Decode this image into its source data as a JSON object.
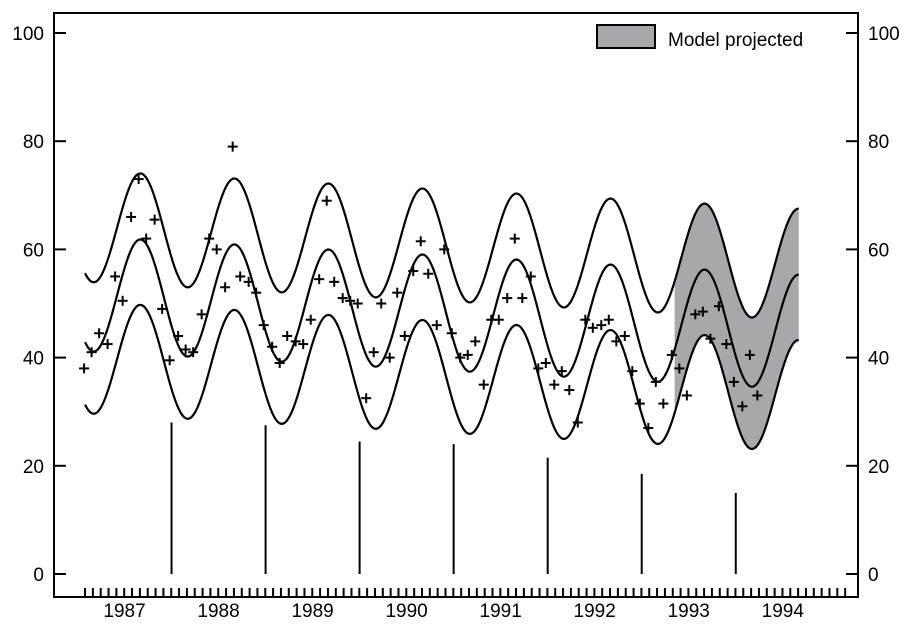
{
  "chart_data": {
    "type": "line",
    "title": "",
    "xlabel": "",
    "ylabel": "",
    "xlim": [
      1986.25,
      1994.8
    ],
    "ylim": [
      0,
      100
    ],
    "yticks": [
      0,
      20,
      40,
      60,
      80,
      100
    ],
    "xticks": [
      {
        "label": "1987",
        "value": 1987.0
      },
      {
        "label": "1988",
        "value": 1988.0
      },
      {
        "label": "1989",
        "value": 1989.0
      },
      {
        "label": "1990",
        "value": 1990.0
      },
      {
        "label": "1991",
        "value": 1991.0
      },
      {
        "label": "1992",
        "value": 1992.0
      },
      {
        "label": "1993",
        "value": 1993.0
      },
      {
        "label": "1994",
        "value": 1994.0
      }
    ],
    "legend": {
      "placement": "top-right",
      "label": "Model projected",
      "color": "#a8a8ab"
    },
    "colors": {
      "line": "#000000",
      "projected_fill": "#a8a8ab"
    },
    "curve_model": {
      "x_start": 1986.58,
      "x_end": 1994.17,
      "peak_phase": 1987.17,
      "center": {
        "mean_start": 51.8,
        "mean_slope": -0.93,
        "amplitude": 10.6
      },
      "upper": {
        "mean_start": 64.3,
        "mean_slope": -0.93,
        "amplitude": 10.3
      },
      "lower": {
        "mean_start": 40.0,
        "mean_slope": -0.93,
        "amplitude": 10.3
      }
    },
    "projected_band": {
      "x_start": 1992.85,
      "x_end": 1994.17
    },
    "observations": [
      {
        "x": 1986.57,
        "y": 38
      },
      {
        "x": 1986.65,
        "y": 41
      },
      {
        "x": 1986.73,
        "y": 44.5
      },
      {
        "x": 1986.82,
        "y": 42.5
      },
      {
        "x": 1986.9,
        "y": 55
      },
      {
        "x": 1986.98,
        "y": 50.5
      },
      {
        "x": 1987.07,
        "y": 66
      },
      {
        "x": 1987.15,
        "y": 73
      },
      {
        "x": 1987.23,
        "y": 62
      },
      {
        "x": 1987.32,
        "y": 65.5
      },
      {
        "x": 1987.4,
        "y": 49
      },
      {
        "x": 1987.48,
        "y": 39.5
      },
      {
        "x": 1987.57,
        "y": 44
      },
      {
        "x": 1987.65,
        "y": 41.5
      },
      {
        "x": 1987.73,
        "y": 41
      },
      {
        "x": 1987.82,
        "y": 48
      },
      {
        "x": 1987.9,
        "y": 62
      },
      {
        "x": 1987.98,
        "y": 60
      },
      {
        "x": 1988.07,
        "y": 53
      },
      {
        "x": 1988.15,
        "y": 79
      },
      {
        "x": 1988.23,
        "y": 55
      },
      {
        "x": 1988.32,
        "y": 54
      },
      {
        "x": 1988.4,
        "y": 52
      },
      {
        "x": 1988.48,
        "y": 46
      },
      {
        "x": 1988.57,
        "y": 42
      },
      {
        "x": 1988.65,
        "y": 39
      },
      {
        "x": 1988.73,
        "y": 44
      },
      {
        "x": 1988.82,
        "y": 43
      },
      {
        "x": 1988.9,
        "y": 42.5
      },
      {
        "x": 1988.98,
        "y": 47
      },
      {
        "x": 1989.07,
        "y": 54.5
      },
      {
        "x": 1989.15,
        "y": 69
      },
      {
        "x": 1989.23,
        "y": 54
      },
      {
        "x": 1989.32,
        "y": 51
      },
      {
        "x": 1989.4,
        "y": 50.5
      },
      {
        "x": 1989.48,
        "y": 50
      },
      {
        "x": 1989.57,
        "y": 32.5
      },
      {
        "x": 1989.65,
        "y": 41
      },
      {
        "x": 1989.73,
        "y": 50
      },
      {
        "x": 1989.82,
        "y": 40
      },
      {
        "x": 1989.9,
        "y": 52
      },
      {
        "x": 1989.98,
        "y": 44
      },
      {
        "x": 1990.07,
        "y": 56
      },
      {
        "x": 1990.15,
        "y": 61.5
      },
      {
        "x": 1990.23,
        "y": 55.5
      },
      {
        "x": 1990.32,
        "y": 46
      },
      {
        "x": 1990.4,
        "y": 60
      },
      {
        "x": 1990.48,
        "y": 44.5
      },
      {
        "x": 1990.57,
        "y": 40
      },
      {
        "x": 1990.65,
        "y": 40.5
      },
      {
        "x": 1990.73,
        "y": 43
      },
      {
        "x": 1990.82,
        "y": 35
      },
      {
        "x": 1990.9,
        "y": 47
      },
      {
        "x": 1990.98,
        "y": 47
      },
      {
        "x": 1991.07,
        "y": 51
      },
      {
        "x": 1991.15,
        "y": 62
      },
      {
        "x": 1991.23,
        "y": 51
      },
      {
        "x": 1991.32,
        "y": 55
      },
      {
        "x": 1991.4,
        "y": 38
      },
      {
        "x": 1991.48,
        "y": 39
      },
      {
        "x": 1991.57,
        "y": 35
      },
      {
        "x": 1991.65,
        "y": 37.5
      },
      {
        "x": 1991.73,
        "y": 34
      },
      {
        "x": 1991.82,
        "y": 28
      },
      {
        "x": 1991.9,
        "y": 47
      },
      {
        "x": 1991.98,
        "y": 45.5
      },
      {
        "x": 1992.07,
        "y": 46
      },
      {
        "x": 1992.15,
        "y": 47
      },
      {
        "x": 1992.23,
        "y": 43
      },
      {
        "x": 1992.32,
        "y": 44
      },
      {
        "x": 1992.4,
        "y": 37.5
      },
      {
        "x": 1992.48,
        "y": 31.5
      },
      {
        "x": 1992.57,
        "y": 27
      },
      {
        "x": 1992.65,
        "y": 35.5
      },
      {
        "x": 1992.73,
        "y": 31.5
      },
      {
        "x": 1992.82,
        "y": 40.5
      },
      {
        "x": 1992.9,
        "y": 38
      },
      {
        "x": 1992.98,
        "y": 33
      },
      {
        "x": 1993.07,
        "y": 48
      },
      {
        "x": 1993.15,
        "y": 48.5
      },
      {
        "x": 1993.23,
        "y": 43.5
      },
      {
        "x": 1993.32,
        "y": 49.5
      },
      {
        "x": 1993.4,
        "y": 42.5
      },
      {
        "x": 1993.48,
        "y": 35.5
      },
      {
        "x": 1993.57,
        "y": 31
      },
      {
        "x": 1993.65,
        "y": 40.5
      },
      {
        "x": 1993.73,
        "y": 33
      }
    ],
    "year_markers": [
      {
        "x": 1987.5,
        "height": 28
      },
      {
        "x": 1988.5,
        "height": 27.5
      },
      {
        "x": 1989.5,
        "height": 24.5
      },
      {
        "x": 1990.5,
        "height": 24
      },
      {
        "x": 1991.5,
        "height": 21.5
      },
      {
        "x": 1992.5,
        "height": 18.5
      },
      {
        "x": 1993.5,
        "height": 15
      }
    ],
    "minor_tick_step": 0.0833333,
    "minor_tick_range": [
      1986.58,
      1994.7
    ]
  }
}
